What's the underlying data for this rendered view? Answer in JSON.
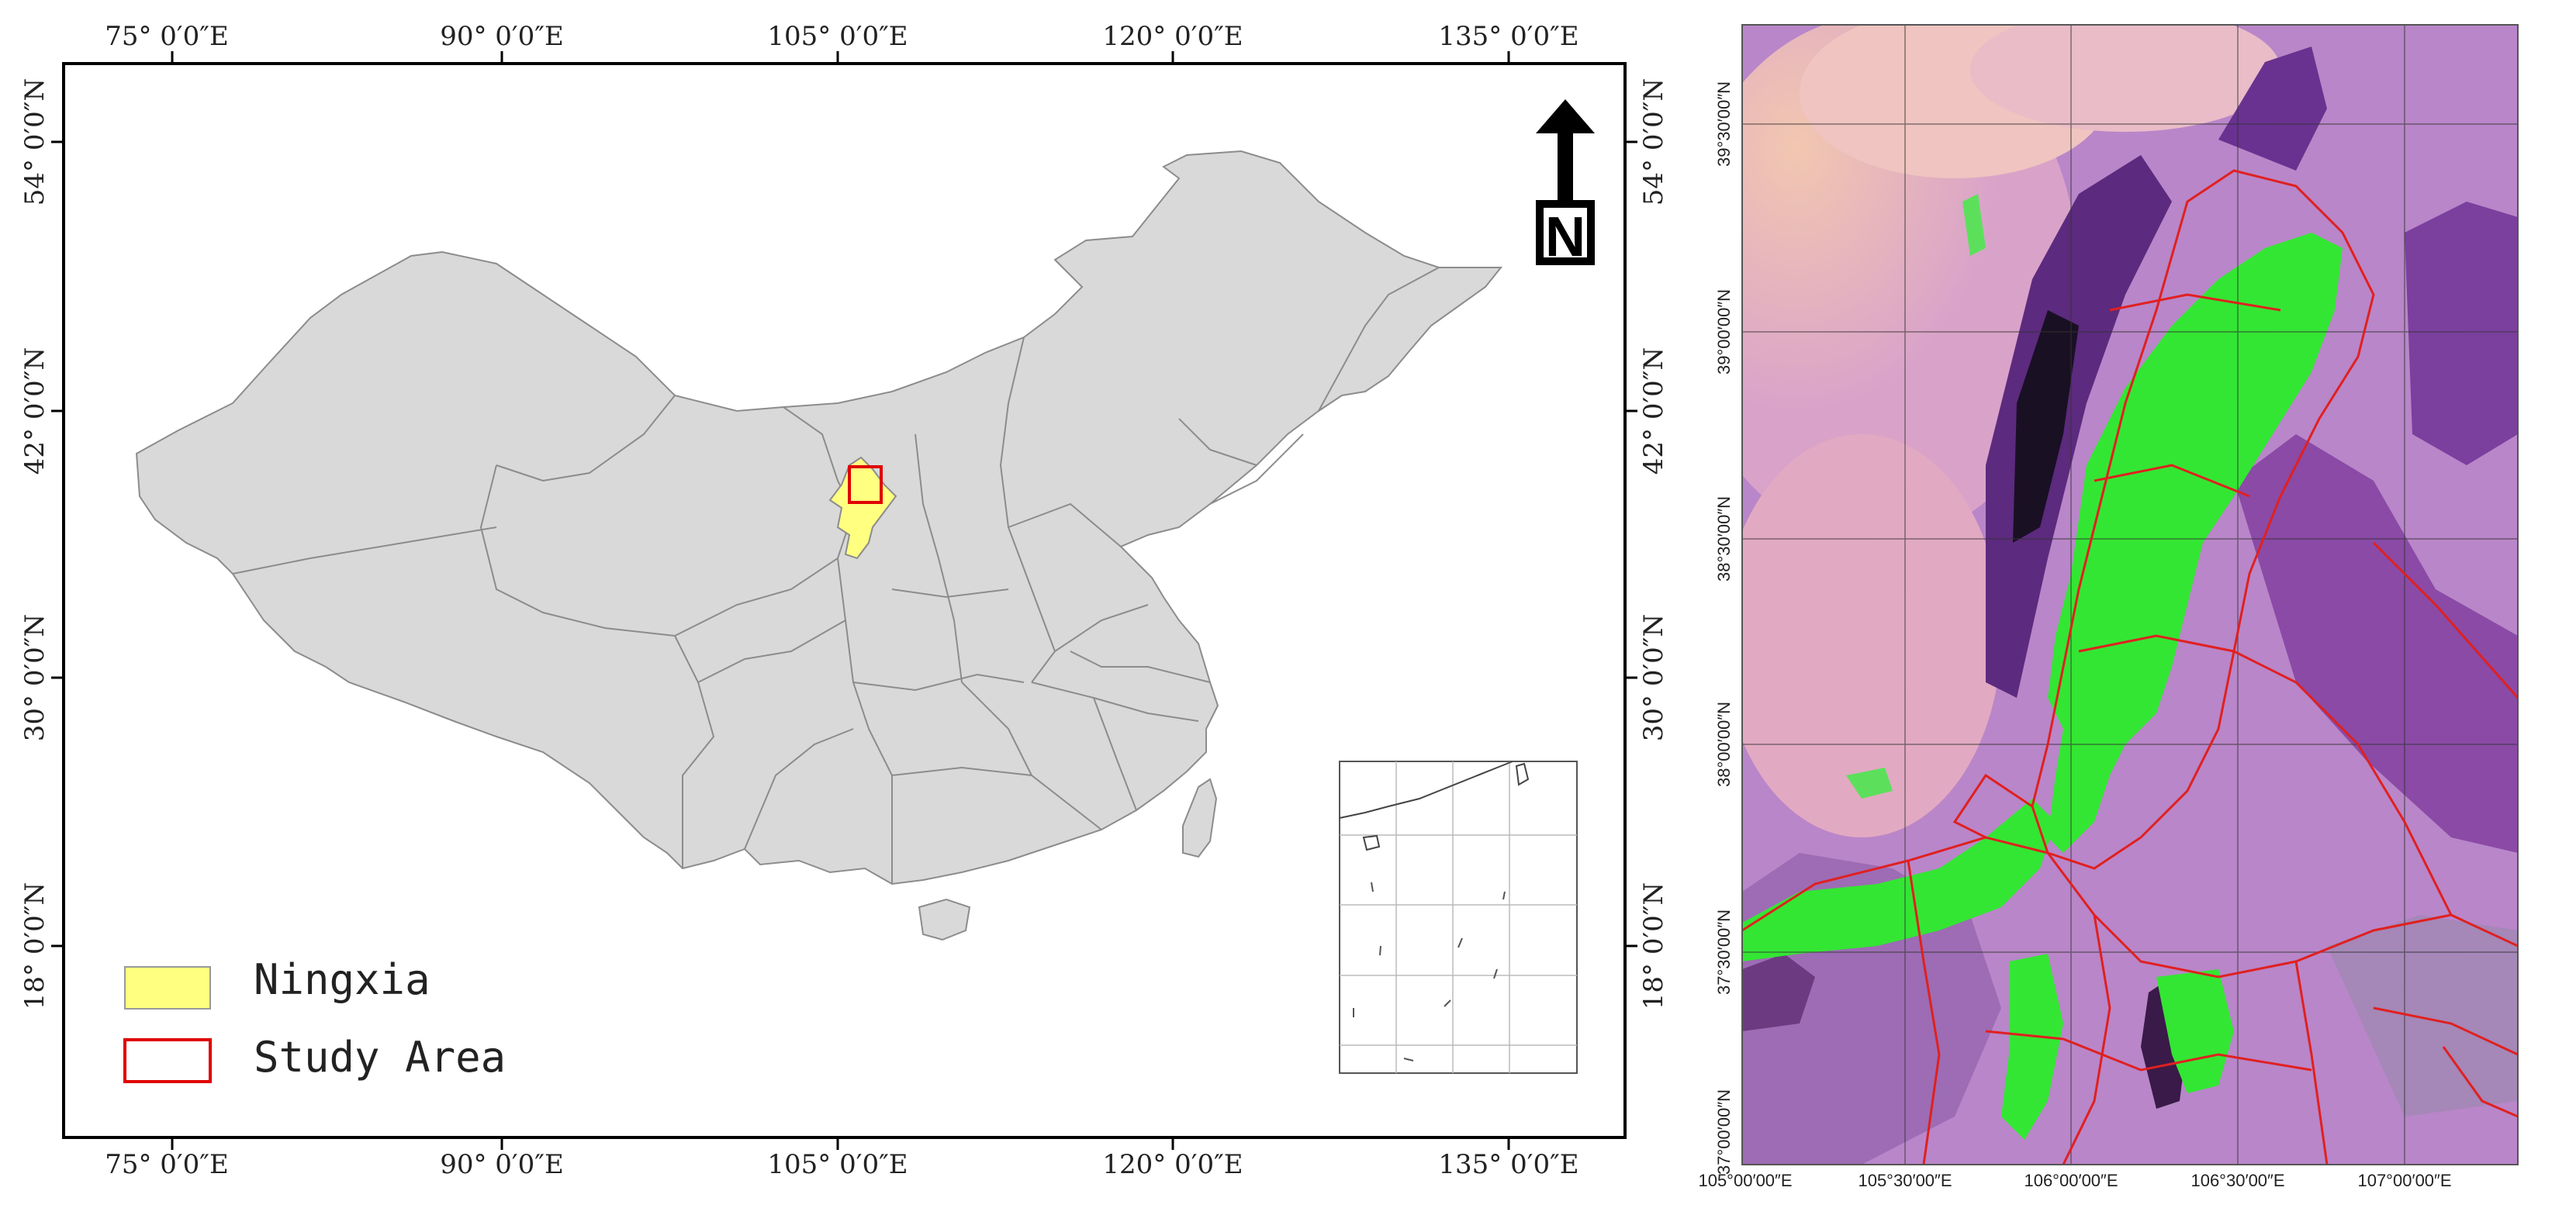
{
  "map": {
    "top_ticks": [
      "75° 0′0″E",
      "90° 0′0″E",
      "105° 0′0″E",
      "120° 0′0″E",
      "135° 0′0″E"
    ],
    "bottom_ticks": [
      "75° 0′0″E",
      "90° 0′0″E",
      "105° 0′0″E",
      "120° 0′0″E",
      "135° 0′0″E"
    ],
    "left_ticks": [
      "54° 0′0″N",
      "42° 0′0″N",
      "30° 0′0″N",
      "18° 0′0″N"
    ],
    "right_ticks": [
      "54° 0′0″N",
      "42° 0′0″N",
      "30° 0′0″N",
      "18° 0′0″N"
    ],
    "north_letter": "N",
    "legend": {
      "ningxia": "Ningxia",
      "study_area": "Study Area",
      "ningxia_color": "#ffff80",
      "study_area_color": "#e00000"
    },
    "land_color": "#d9d9d9"
  },
  "satellite": {
    "left_ticks": [
      "39°30′00″N",
      "39°00′00″N",
      "38°30′00″N",
      "38°00′00″N",
      "37°30′00″N",
      "37°00′00″N"
    ],
    "bottom_ticks": [
      "105°00′00″E",
      "105°30′00″E",
      "106°00′00″E",
      "106°30′00″E",
      "107°00′00″E"
    ],
    "vegetation_color": "#33e633",
    "boundary_color": "#e02020"
  }
}
